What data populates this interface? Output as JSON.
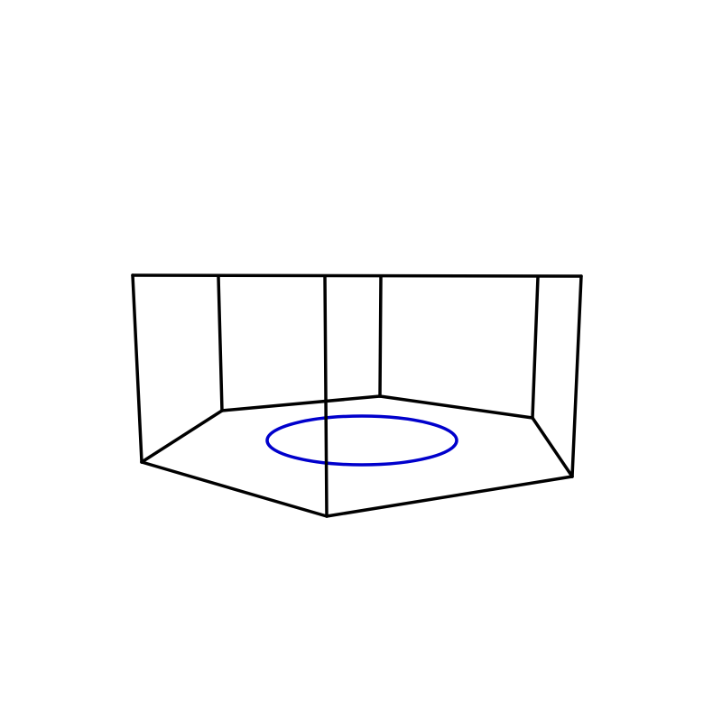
{
  "figure": {
    "background_color": "#ffffff",
    "edge_color": "#000000",
    "circle_color": "#0000cc",
    "shape": "pentagonal prism with inscribed circle on base"
  }
}
